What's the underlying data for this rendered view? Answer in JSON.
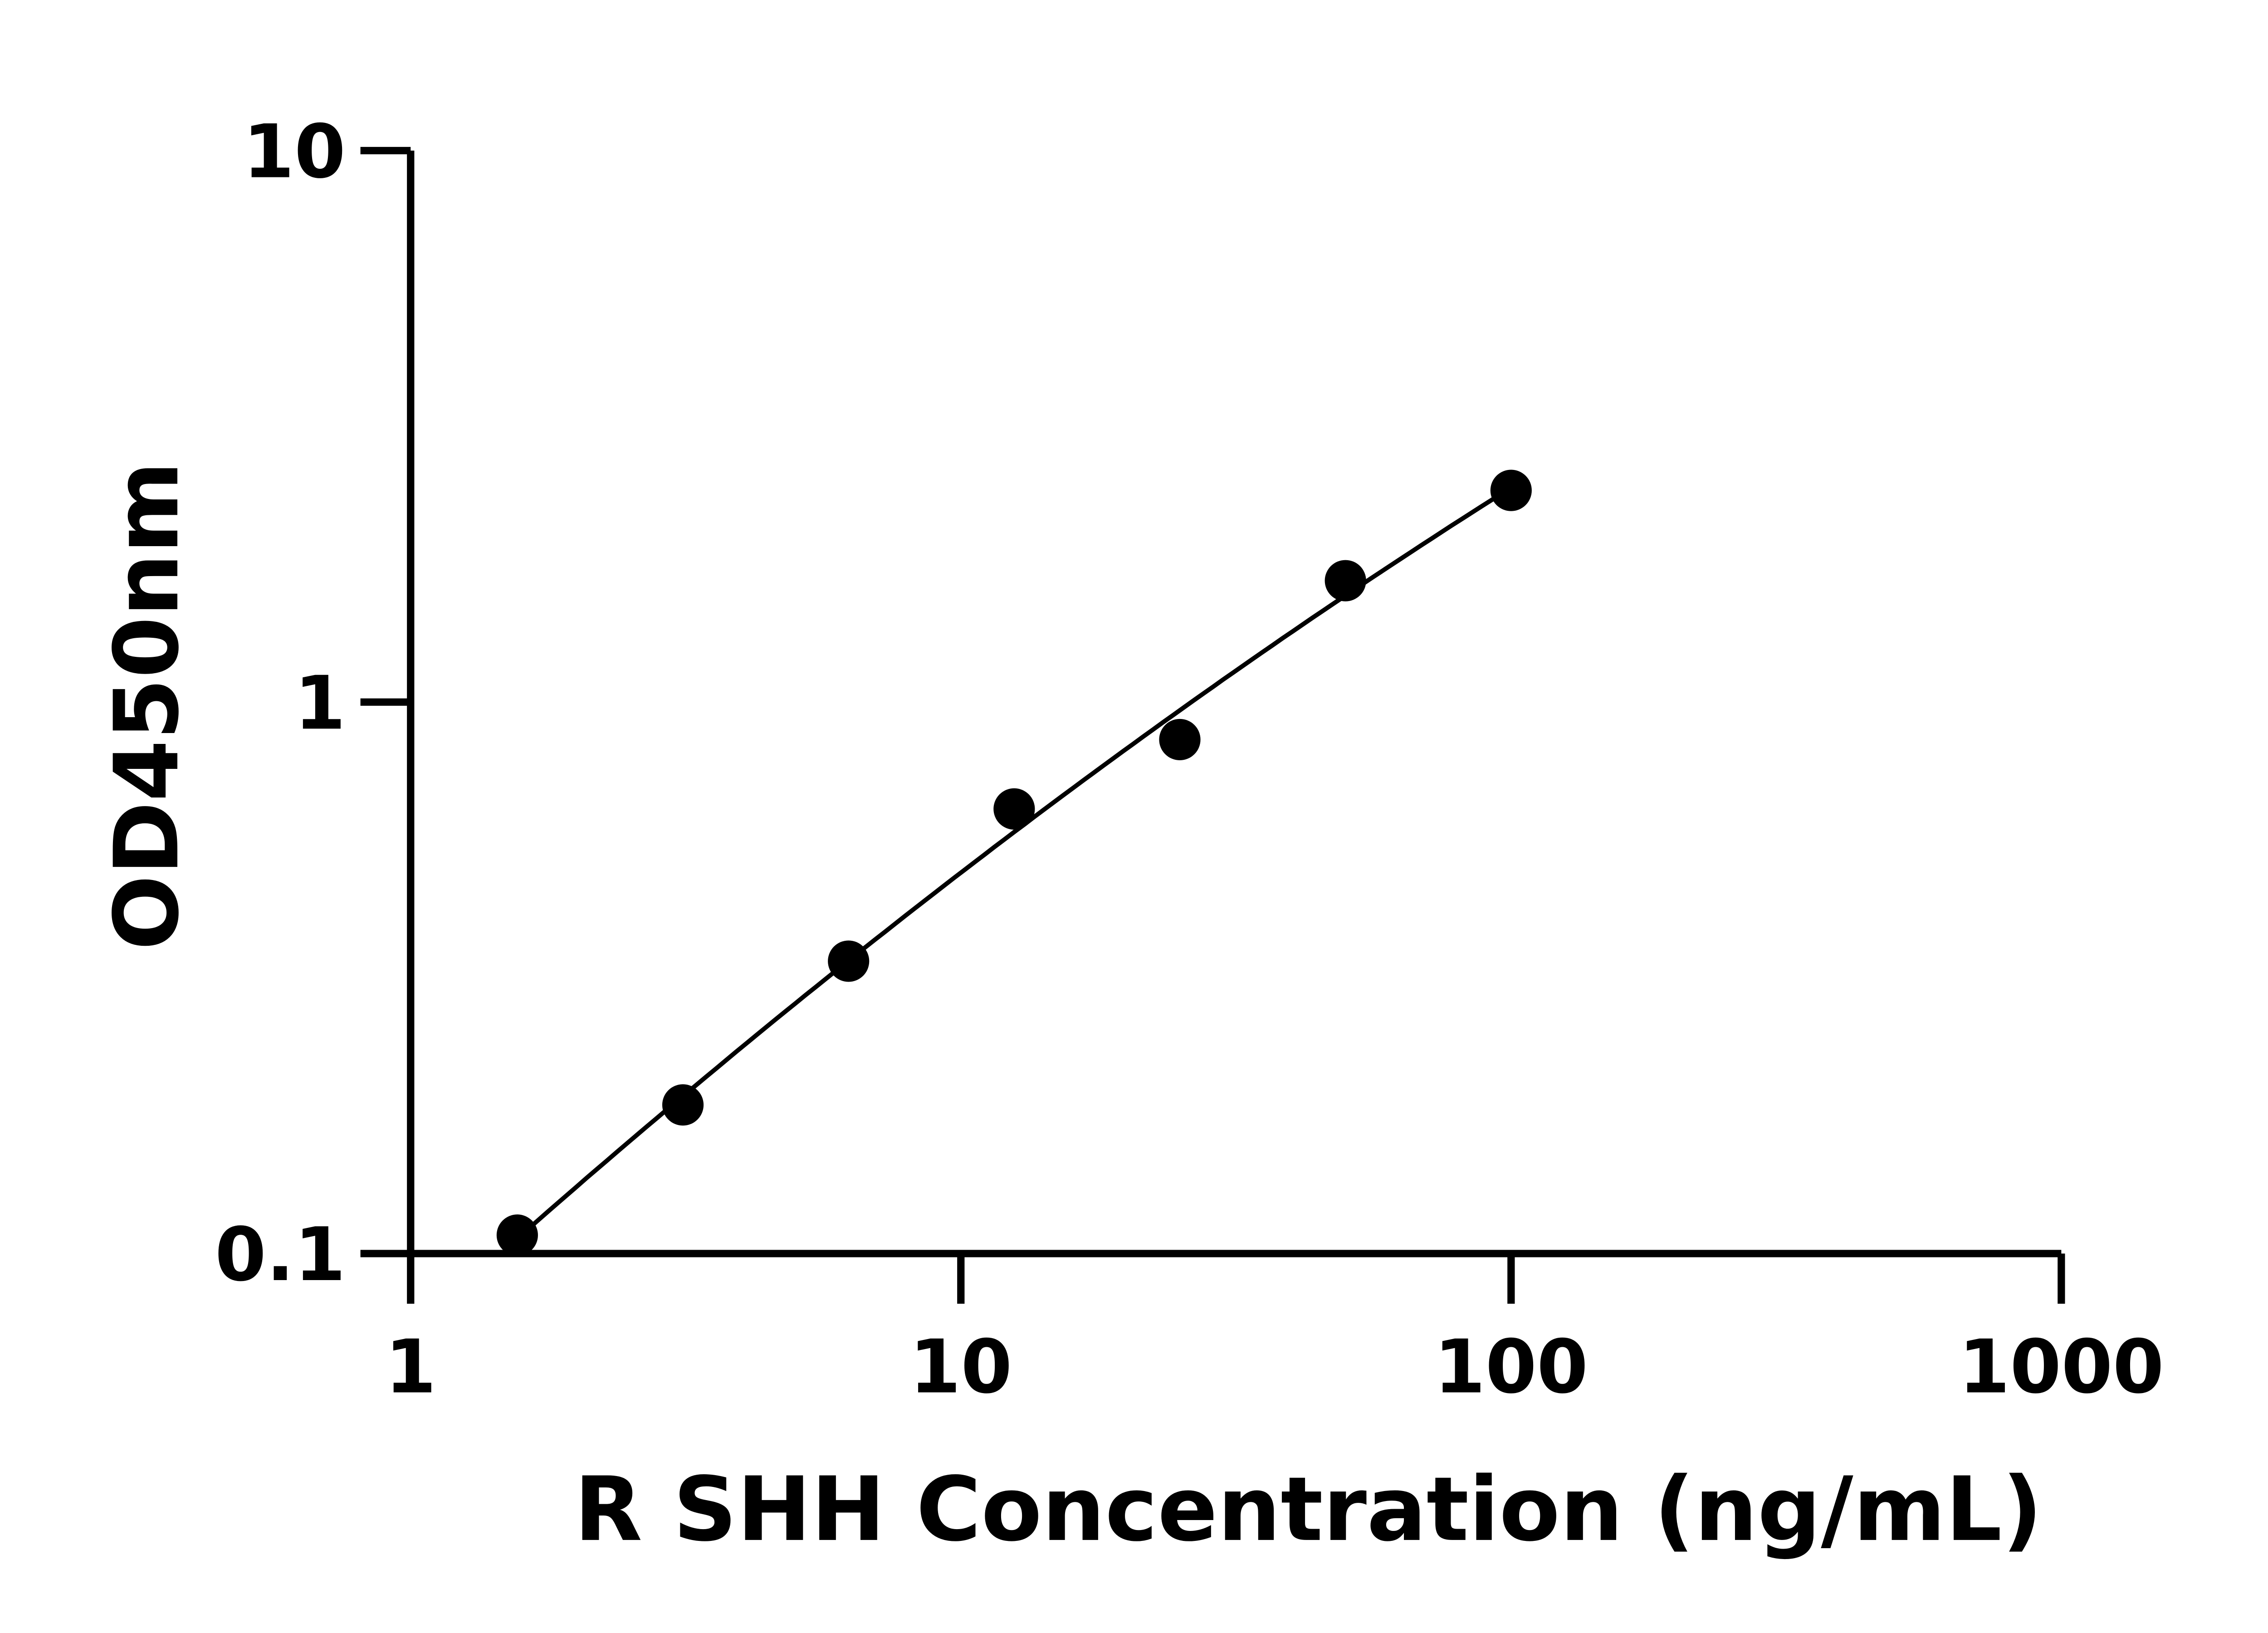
{
  "chart_data": {
    "type": "scatter",
    "title": "",
    "xlabel": "R SHH Concentration (ng/mL)",
    "ylabel": "OD450nm",
    "xscale": "log",
    "yscale": "log",
    "xlim": [
      1,
      1000
    ],
    "ylim": [
      0.1,
      10
    ],
    "xticks": [
      1,
      10,
      100,
      1000
    ],
    "xtick_labels": [
      "1",
      "10",
      "100",
      "1000"
    ],
    "yticks": [
      0.1,
      1,
      10
    ],
    "ytick_labels": [
      "0.1",
      "1",
      "10"
    ],
    "grid": false,
    "legend": "none",
    "fit_curve": true,
    "marker_color": "#000000",
    "series": [
      {
        "x": [
          1.5625,
          3.125,
          6.25,
          12.5,
          25,
          50,
          100
        ],
        "y": [
          0.108,
          0.186,
          0.339,
          0.64,
          0.855,
          1.66,
          2.42
        ]
      }
    ]
  }
}
